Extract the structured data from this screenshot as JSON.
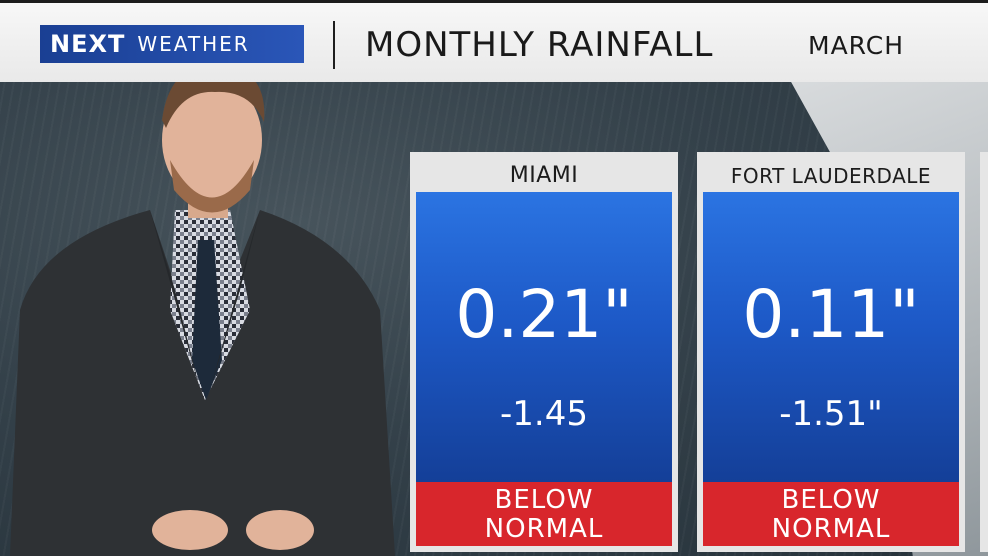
{
  "header": {
    "logo_next": "NEXT",
    "logo_weather": "WEATHER",
    "title": "MONTHLY RAINFALL",
    "subtitle": "MARCH"
  },
  "cards": [
    {
      "city": "MIAMI",
      "value": "0.21\"",
      "departure": "-1.45",
      "status_line1": "BELOW",
      "status_line2": "NORMAL"
    },
    {
      "city": "FORT LAUDERDALE",
      "value": "0.11\"",
      "departure": "-1.51\"",
      "status_line1": "BELOW",
      "status_line2": "NORMAL"
    }
  ],
  "colors": {
    "card_blue_top": "#2b74e2",
    "card_blue_bottom": "#143f98",
    "status_red": "#d8262c",
    "logo_blue": "#1a3f93"
  }
}
